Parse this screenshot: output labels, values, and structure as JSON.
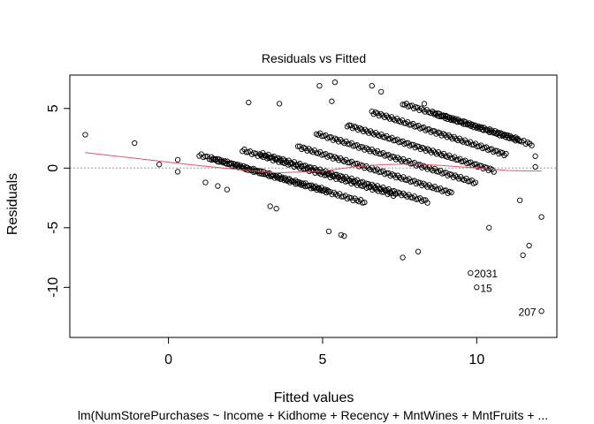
{
  "chart_data": {
    "type": "scatter",
    "title": "Residuals vs Fitted",
    "xlabel": "Fitted values",
    "ylabel": "Residuals",
    "subtitle": "lm(NumStorePurchases ~ Income + Kidhome + Recency + MntWines + MntFruits +  ...",
    "xlim": [
      -3.2,
      12.6
    ],
    "ylim": [
      -14.2,
      7.8
    ],
    "x_ticks": [
      0,
      5,
      10
    ],
    "y_ticks": [
      -10,
      -5,
      0,
      5
    ],
    "x_tick_labels": [
      "0",
      "5",
      "10"
    ],
    "y_tick_labels": [
      "-10",
      "-5",
      "0",
      "5"
    ],
    "reference_line_y": 0,
    "colors": {
      "points": "#000000",
      "smooth": "#DF536B",
      "reference": "#9E9E9E"
    },
    "grid": false,
    "outliers": [
      {
        "label": "2031",
        "x": 9.8,
        "y": -8.8
      },
      {
        "label": "15",
        "x": 10.0,
        "y": -10.0
      },
      {
        "label": "207",
        "x": 12.1,
        "y": -12.0
      }
    ],
    "isolated_points": [
      [
        -2.7,
        2.8
      ],
      [
        -1.1,
        2.1
      ],
      [
        -0.3,
        0.3
      ],
      [
        0.3,
        0.7
      ],
      [
        0.3,
        -0.3
      ],
      [
        1.2,
        -1.2
      ],
      [
        1.6,
        -1.5
      ],
      [
        1.9,
        -1.8
      ],
      [
        2.6,
        5.5
      ],
      [
        3.6,
        5.4
      ],
      [
        3.3,
        -3.2
      ],
      [
        3.5,
        -3.4
      ],
      [
        4.9,
        6.9
      ],
      [
        5.4,
        7.2
      ],
      [
        5.3,
        5.6
      ],
      [
        5.2,
        -5.3
      ],
      [
        5.7,
        -5.7
      ],
      [
        5.6,
        -5.6
      ],
      [
        7.6,
        -7.5
      ],
      [
        8.1,
        -7.0
      ],
      [
        9.8,
        -8.8
      ],
      [
        10.0,
        -10.0
      ],
      [
        12.1,
        -12.0
      ],
      [
        11.5,
        -7.3
      ],
      [
        11.7,
        -6.5
      ],
      [
        12.1,
        -4.1
      ],
      [
        11.9,
        1.0
      ],
      [
        11.9,
        0.1
      ],
      [
        11.4,
        -2.7
      ],
      [
        10.4,
        -5.0
      ],
      [
        6.9,
        6.4
      ],
      [
        6.6,
        6.9
      ],
      [
        8.3,
        5.4
      ],
      [
        9.0,
        4.4
      ]
    ],
    "bands": [
      {
        "x_start": 1.0,
        "x_end": 5.2,
        "y_start": 1.1,
        "slope": -0.72,
        "step": 0.065
      },
      {
        "x_start": 1.4,
        "x_end": 6.4,
        "y_start": 0.8,
        "slope": -0.74,
        "step": 0.062
      },
      {
        "x_start": 2.4,
        "x_end": 7.4,
        "y_start": 1.5,
        "slope": -0.76,
        "step": 0.062
      },
      {
        "x_start": 3.0,
        "x_end": 8.4,
        "y_start": 1.2,
        "slope": -0.74,
        "step": 0.06
      },
      {
        "x_start": 4.2,
        "x_end": 9.2,
        "y_start": 1.8,
        "slope": -0.78,
        "step": 0.06
      },
      {
        "x_start": 4.8,
        "x_end": 10.0,
        "y_start": 2.9,
        "slope": -0.8,
        "step": 0.06
      },
      {
        "x_start": 5.8,
        "x_end": 10.6,
        "y_start": 3.6,
        "slope": -0.8,
        "step": 0.058
      },
      {
        "x_start": 6.6,
        "x_end": 11.0,
        "y_start": 4.7,
        "slope": -0.82,
        "step": 0.058
      },
      {
        "x_start": 7.6,
        "x_end": 11.4,
        "y_start": 5.4,
        "slope": -0.8,
        "step": 0.06
      },
      {
        "x_start": 8.6,
        "x_end": 11.8,
        "y_start": 4.6,
        "slope": -0.82,
        "step": 0.065
      }
    ],
    "smooth_line": [
      [
        -2.7,
        1.3
      ],
      [
        -1.0,
        0.8
      ],
      [
        0.5,
        0.35
      ],
      [
        2.0,
        -0.05
      ],
      [
        3.5,
        -0.4
      ],
      [
        5.0,
        -0.25
      ],
      [
        6.0,
        0.1
      ],
      [
        7.0,
        0.3
      ],
      [
        8.0,
        0.35
      ],
      [
        9.0,
        0.2
      ],
      [
        10.0,
        0.0
      ],
      [
        11.0,
        -0.2
      ],
      [
        12.1,
        -0.25
      ]
    ]
  }
}
